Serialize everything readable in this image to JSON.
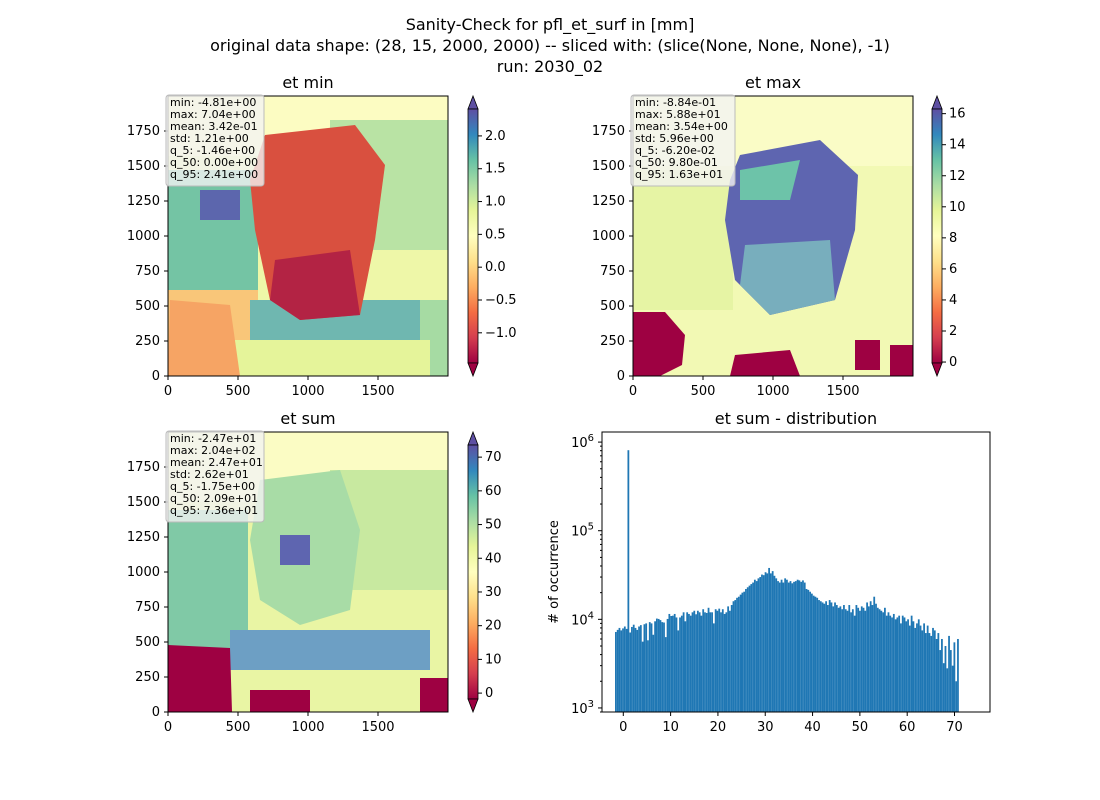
{
  "figure": {
    "title_lines": [
      "Sanity-Check for pfl_et_surf in [mm]",
      "original data shape: (28, 15, 2000, 2000) -- sliced with: (slice(None, None, None), -1)",
      "run: 2030_02"
    ]
  },
  "chart_data": [
    {
      "type": "heatmap",
      "title": "et min",
      "xlim": [
        0,
        2000
      ],
      "ylim": [
        0,
        2000
      ],
      "x_ticks": [
        "0",
        "500",
        "1000",
        "1500"
      ],
      "y_ticks": [
        "0",
        "250",
        "500",
        "750",
        "1000",
        "1250",
        "1500",
        "1750"
      ],
      "colormap": "Spectral",
      "colorbar": {
        "vmin": -1.46,
        "vmax": 2.41,
        "ticks": [
          -1.0,
          -0.5,
          0.0,
          0.5,
          1.0,
          1.5,
          2.0
        ],
        "tick_labels": [
          "−1.0",
          "−0.5",
          "0.0",
          "0.5",
          "1.0",
          "1.5",
          "2.0"
        ],
        "extend": "both"
      },
      "stats": [
        "min: -4.81e+00",
        "max: 7.04e+00",
        "mean: 3.42e-01",
        "std: 1.21e+00",
        "q_5: -1.46e+00",
        "q_50: 0.00e+00",
        "q_95: 2.41e+00"
      ]
    },
    {
      "type": "heatmap",
      "title": "et max",
      "xlim": [
        0,
        2000
      ],
      "ylim": [
        0,
        2000
      ],
      "x_ticks": [
        "0",
        "500",
        "1000",
        "1500"
      ],
      "y_ticks": [
        "0",
        "250",
        "500",
        "750",
        "1000",
        "1250",
        "1500",
        "1750"
      ],
      "colormap": "Spectral",
      "colorbar": {
        "vmin": -0.062,
        "vmax": 16.3,
        "ticks": [
          0,
          2,
          4,
          6,
          8,
          10,
          12,
          14,
          16
        ],
        "tick_labels": [
          "0",
          "2",
          "4",
          "6",
          "8",
          "10",
          "12",
          "14",
          "16"
        ],
        "extend": "both"
      },
      "stats": [
        "min: -8.84e-01",
        "max: 5.88e+01",
        "mean: 3.54e+00",
        "std: 5.96e+00",
        "q_5: -6.20e-02",
        "q_50: 9.80e-01",
        "q_95: 1.63e+01"
      ]
    },
    {
      "type": "heatmap",
      "title": "et sum",
      "xlim": [
        0,
        2000
      ],
      "ylim": [
        0,
        2000
      ],
      "x_ticks": [
        "0",
        "500",
        "1000",
        "1500"
      ],
      "y_ticks": [
        "0",
        "250",
        "500",
        "750",
        "1000",
        "1250",
        "1500",
        "1750"
      ],
      "colormap": "Spectral",
      "colorbar": {
        "vmin": -1.75,
        "vmax": 73.6,
        "ticks": [
          0,
          10,
          20,
          30,
          40,
          50,
          60,
          70
        ],
        "tick_labels": [
          "0",
          "10",
          "20",
          "30",
          "40",
          "50",
          "60",
          "70"
        ],
        "extend": "both"
      },
      "stats": [
        "min: -2.47e+01",
        "max: 2.04e+02",
        "mean: 2.47e+01",
        "std: 2.62e+01",
        "q_5: -1.75e+00",
        "q_50: 2.09e+01",
        "q_95: 7.36e+01"
      ]
    },
    {
      "type": "bar",
      "title": "et sum - distribution",
      "xlabel": "",
      "ylabel": "# of occurrence",
      "yscale": "log",
      "xlim": [
        -4.5,
        77.5
      ],
      "ylim": [
        900,
        1300000
      ],
      "x_ticks": [
        0,
        10,
        20,
        30,
        40,
        50,
        60,
        70
      ],
      "y_ticks": [
        {
          "value": 1000,
          "base": "10",
          "exp": "3"
        },
        {
          "value": 10000,
          "base": "10",
          "exp": "4"
        },
        {
          "value": 100000,
          "base": "10",
          "exp": "5"
        },
        {
          "value": 1000000,
          "base": "10",
          "exp": "6"
        }
      ],
      "bar_color": "#1f77b4",
      "bin_start": -1.75,
      "bin_width": 0.3765,
      "values": [
        7200,
        7600,
        8000,
        7500,
        7900,
        8300,
        7800,
        810000,
        7100,
        8200,
        8700,
        8000,
        7600,
        8300,
        8600,
        5600,
        8800,
        9000,
        5800,
        9300,
        9000,
        6700,
        9500,
        10200,
        10100,
        9800,
        9300,
        9200,
        6300,
        10100,
        11500,
        10900,
        11000,
        11500,
        10500,
        7500,
        10500,
        11000,
        12000,
        9500,
        12000,
        11500,
        11000,
        12000,
        12500,
        11400,
        12500,
        12000,
        11000,
        13000,
        12000,
        11800,
        13500,
        12000,
        12000,
        9000,
        13000,
        12500,
        13200,
        12000,
        13000,
        11500,
        12000,
        14000,
        12500,
        14500,
        16000,
        16500,
        17500,
        18000,
        19000,
        20000,
        20500,
        22000,
        23000,
        24000,
        25000,
        26000,
        28000,
        27000,
        29000,
        30000,
        32000,
        31500,
        34000,
        33000,
        38000,
        33000,
        35000,
        31000,
        29000,
        27000,
        26000,
        28000,
        26000,
        29000,
        28000,
        26000,
        27000,
        25500,
        26500,
        27000,
        28000,
        27500,
        26500,
        27500,
        26000,
        22000,
        21500,
        20500,
        19500,
        18500,
        18000,
        17500,
        16500,
        16000,
        15500,
        15000,
        16000,
        14500,
        16500,
        15500,
        14000,
        15500,
        14500,
        13500,
        14000,
        13000,
        14500,
        13000,
        12500,
        14500,
        12000,
        13000,
        11000,
        14500,
        13500,
        12500,
        14000,
        13500,
        12500,
        15500,
        14000,
        16000,
        14500,
        18000,
        15000,
        13500,
        13000,
        12500,
        12000,
        13500,
        11000,
        12000,
        11000,
        10500,
        11500,
        10000,
        10500,
        11000,
        9000,
        11000,
        10500,
        9500,
        10000,
        8500,
        11000,
        9500,
        8000,
        9000,
        10000,
        8500,
        7500,
        9000,
        7000,
        8500,
        7000,
        6500,
        8000,
        7500,
        6000,
        7000,
        4500,
        6000,
        3200,
        5000,
        2800,
        6500,
        4500,
        3000,
        5500,
        2000,
        6000
      ]
    }
  ]
}
